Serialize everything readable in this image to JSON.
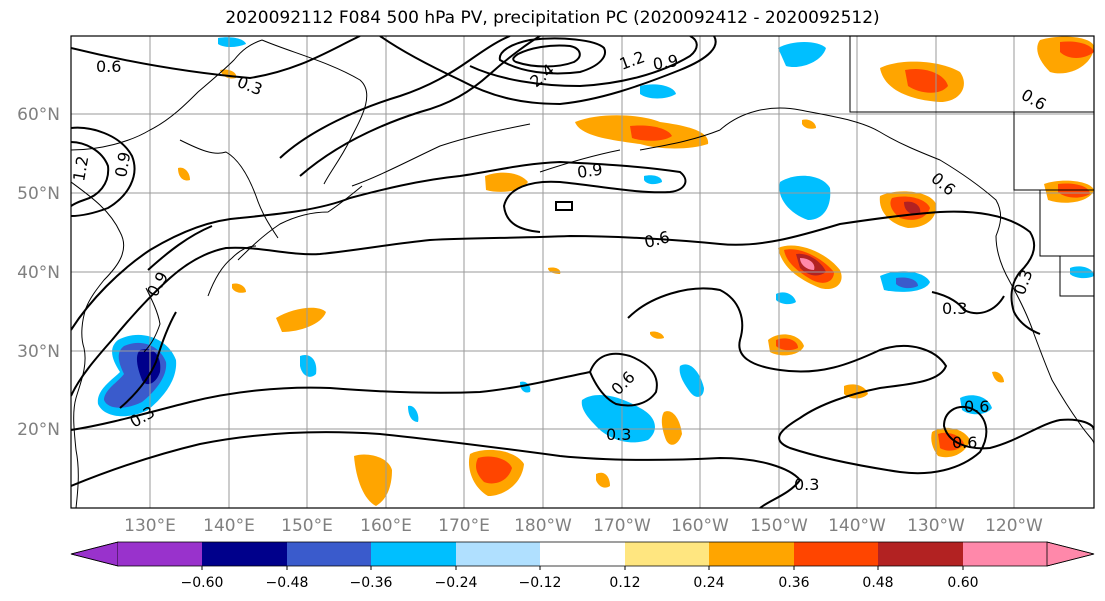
{
  "title": "2020092112 F084 500 hPa PV, precipitation PC (2020092412 - 2020092512)",
  "lat_labels": [
    "60°N",
    "50°N",
    "40°N",
    "30°N",
    "20°N"
  ],
  "lon_labels": [
    "130°E",
    "140°E",
    "150°E",
    "160°E",
    "170°E",
    "180°W",
    "170°W",
    "160°W",
    "150°W",
    "140°W",
    "130°W",
    "120°W"
  ],
  "colorbar": {
    "tick_labels": [
      "−0.60",
      "−0.48",
      "−0.36",
      "−0.24",
      "−0.12",
      "0.12",
      "0.24",
      "0.36",
      "0.48",
      "0.60"
    ],
    "colors": [
      "#9932cc",
      "#00008b",
      "#3a5bcc",
      "#00bfff",
      "#b0e0ff",
      "#ffffff",
      "#ffe680",
      "#ffa500",
      "#ff4500",
      "#b22222",
      "#ff88aa"
    ]
  },
  "contour_labels": [
    "0.6",
    "0.3",
    "1.2",
    "0.9",
    "2.4",
    "1.2",
    "0.9",
    "0.9",
    "0.6",
    "0.9",
    "0.6",
    "0.3",
    "0.3",
    "0.6",
    "0.3",
    "0.6",
    "0.3",
    "0.6",
    "0.3",
    "0.6"
  ]
}
